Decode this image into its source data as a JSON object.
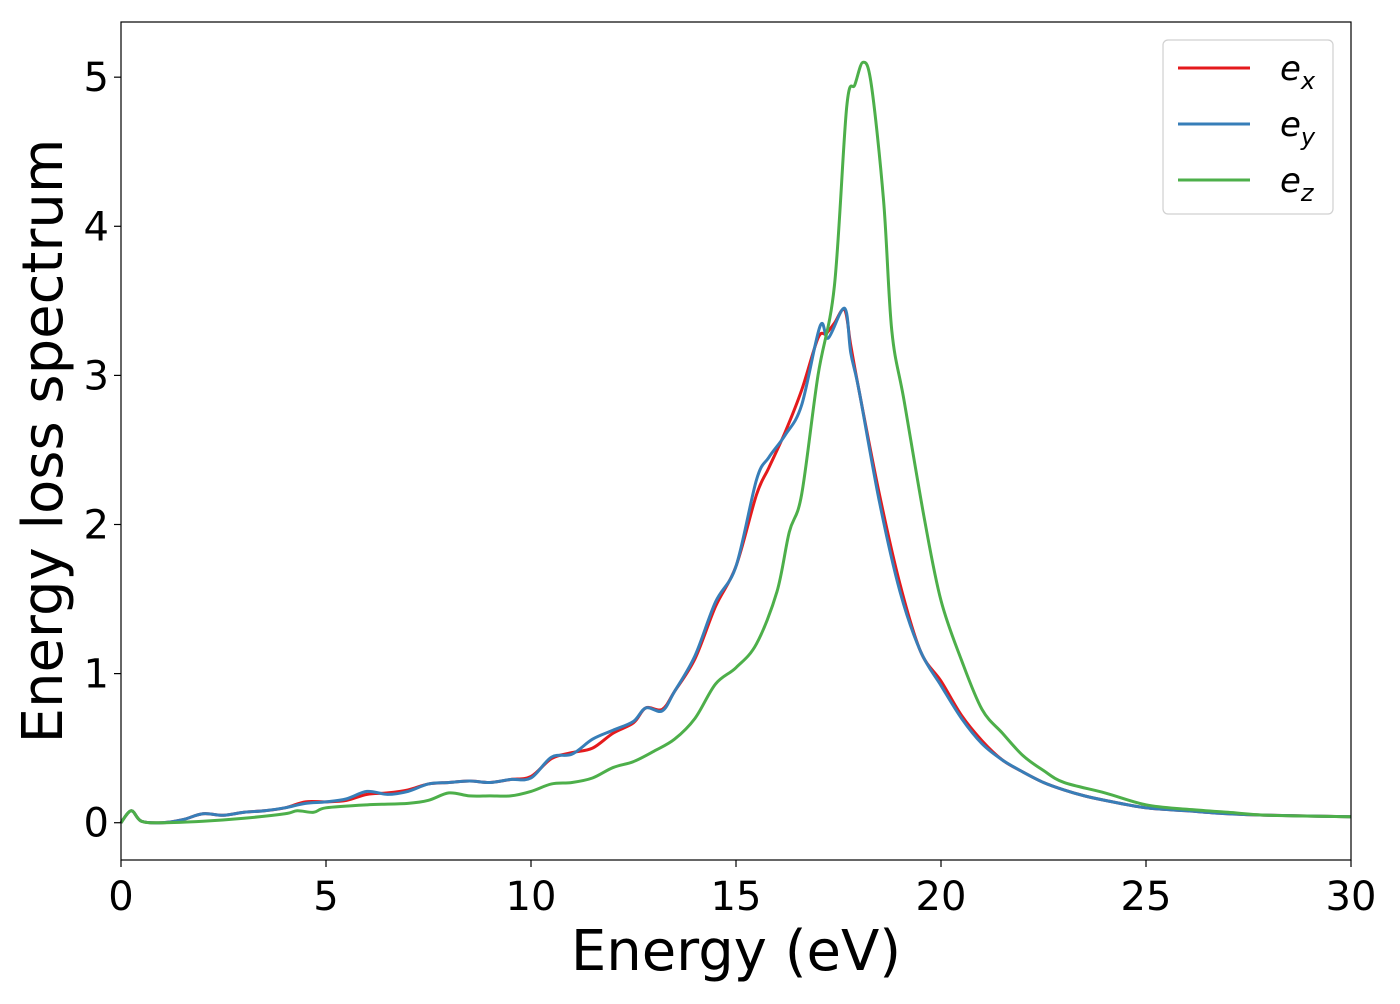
{
  "chart_data": {
    "type": "line",
    "title": "",
    "xlabel": "Energy (eV)",
    "ylabel": "Energy loss spectrum",
    "xlim": [
      0,
      30
    ],
    "ylim": [
      -0.25,
      5.37
    ],
    "xticks": [
      0,
      5,
      10,
      15,
      20,
      25,
      30
    ],
    "yticks": [
      0,
      1,
      2,
      3,
      4,
      5
    ],
    "grid": false,
    "legend_position": "top-right",
    "series": [
      {
        "name": "e",
        "subscript": "x",
        "color": "#e41a1c",
        "x": [
          0,
          0.25,
          0.5,
          1,
          1.5,
          2,
          2.5,
          3,
          3.5,
          4,
          4.5,
          5,
          5.5,
          6,
          6.5,
          7,
          7.5,
          8,
          8.5,
          9,
          9.5,
          10,
          10.5,
          11,
          11.5,
          12,
          12.5,
          12.8,
          13.2,
          13.5,
          14,
          14.5,
          15,
          15.5,
          15.8,
          16.2,
          16.6,
          17,
          17.2,
          17.4,
          17.65,
          17.8,
          18,
          18.5,
          19,
          19.5,
          20,
          20.5,
          21,
          21.5,
          22,
          22.5,
          23,
          23.5,
          24,
          25,
          26,
          27,
          28,
          30
        ],
        "y": [
          0,
          0.08,
          0.01,
          0,
          0.02,
          0.06,
          0.05,
          0.07,
          0.08,
          0.1,
          0.14,
          0.14,
          0.15,
          0.19,
          0.2,
          0.22,
          0.26,
          0.27,
          0.28,
          0.27,
          0.29,
          0.31,
          0.43,
          0.47,
          0.5,
          0.6,
          0.67,
          0.77,
          0.76,
          0.88,
          1.1,
          1.45,
          1.72,
          2.2,
          2.38,
          2.62,
          2.9,
          3.25,
          3.28,
          3.35,
          3.44,
          3.2,
          2.9,
          2.2,
          1.6,
          1.15,
          0.95,
          0.72,
          0.55,
          0.42,
          0.34,
          0.27,
          0.22,
          0.18,
          0.15,
          0.1,
          0.08,
          0.06,
          0.05,
          0.04
        ]
      },
      {
        "name": "e",
        "subscript": "y",
        "color": "#377eb8",
        "x": [
          0,
          0.25,
          0.5,
          1,
          1.5,
          2,
          2.5,
          3,
          3.5,
          4,
          4.5,
          5,
          5.5,
          6,
          6.5,
          7,
          7.5,
          8,
          8.5,
          9,
          9.5,
          10,
          10.5,
          11,
          11.5,
          12,
          12.5,
          12.8,
          13.2,
          13.5,
          14,
          14.5,
          15,
          15.5,
          15.8,
          16.2,
          16.6,
          17.05,
          17.25,
          17.65,
          17.8,
          18,
          18.5,
          19,
          19.5,
          20,
          20.5,
          21,
          21.5,
          22,
          22.5,
          23,
          23.5,
          24,
          25,
          26,
          27,
          28,
          30
        ],
        "y": [
          0,
          0.08,
          0.01,
          0,
          0.02,
          0.06,
          0.05,
          0.07,
          0.08,
          0.1,
          0.13,
          0.14,
          0.16,
          0.21,
          0.19,
          0.21,
          0.26,
          0.27,
          0.28,
          0.27,
          0.29,
          0.3,
          0.44,
          0.46,
          0.56,
          0.62,
          0.68,
          0.77,
          0.75,
          0.88,
          1.12,
          1.48,
          1.72,
          2.3,
          2.45,
          2.6,
          2.8,
          3.33,
          3.25,
          3.45,
          3.15,
          2.9,
          2.15,
          1.55,
          1.15,
          0.92,
          0.7,
          0.53,
          0.42,
          0.34,
          0.27,
          0.22,
          0.18,
          0.15,
          0.1,
          0.08,
          0.06,
          0.05,
          0.04
        ]
      },
      {
        "name": "e",
        "subscript": "z",
        "color": "#4daf4a",
        "x": [
          0,
          0.25,
          0.5,
          1,
          2,
          3,
          4,
          4.3,
          4.7,
          5,
          6,
          7,
          7.5,
          8,
          8.5,
          9,
          9.5,
          10,
          10.5,
          11,
          11.5,
          12,
          12.5,
          13,
          13.5,
          14,
          14.5,
          15,
          15.5,
          16,
          16.3,
          16.6,
          17,
          17.4,
          17.7,
          17.9,
          18.1,
          18.3,
          18.6,
          18.8,
          19.1,
          19.6,
          20,
          20.5,
          21,
          21.5,
          22,
          22.5,
          23,
          24,
          25,
          26,
          27,
          28,
          30
        ],
        "y": [
          0,
          0.08,
          0.01,
          0,
          0.01,
          0.03,
          0.06,
          0.08,
          0.07,
          0.1,
          0.12,
          0.13,
          0.15,
          0.2,
          0.18,
          0.18,
          0.18,
          0.21,
          0.26,
          0.27,
          0.3,
          0.37,
          0.41,
          0.48,
          0.56,
          0.7,
          0.93,
          1.04,
          1.2,
          1.55,
          1.95,
          2.2,
          3.0,
          3.6,
          4.8,
          4.95,
          5.1,
          4.95,
          4.17,
          3.3,
          2.83,
          2.03,
          1.49,
          1.09,
          0.76,
          0.6,
          0.45,
          0.35,
          0.27,
          0.2,
          0.12,
          0.09,
          0.07,
          0.05,
          0.04
        ]
      }
    ]
  }
}
